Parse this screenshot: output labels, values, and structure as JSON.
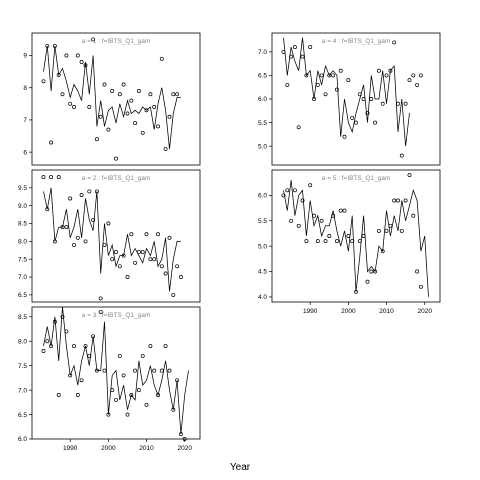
{
  "chart_data": {
    "type": "line",
    "xlabel": "Year",
    "panels": [
      {
        "title": "a = 1 : f=IBTS_Q1_gam",
        "xlim": [
          1980,
          2024
        ],
        "ylim": [
          5.6,
          9.7
        ],
        "yticks": [
          6,
          7,
          8,
          9
        ],
        "xticks": [],
        "line": {
          "x": [
            1983,
            1984,
            1985,
            1986,
            1987,
            1988,
            1989,
            1990,
            1991,
            1992,
            1993,
            1994,
            1995,
            1996,
            1997,
            1998,
            1999,
            2000,
            2001,
            2002,
            2003,
            2004,
            2005,
            2006,
            2007,
            2008,
            2009,
            2010,
            2011,
            2012,
            2013,
            2014,
            2015,
            2016,
            2017,
            2018,
            2019,
            2020,
            2021
          ],
          "y": [
            8.5,
            9.3,
            7.9,
            9.3,
            8.4,
            8.6,
            8.2,
            7.7,
            8.1,
            7.9,
            7.6,
            8.8,
            7.8,
            9.0,
            6.8,
            7.6,
            6.8,
            7.3,
            7.4,
            6.9,
            7.5,
            7.1,
            7.6,
            7.2,
            7.3,
            7.2,
            7.4,
            7.3,
            7.4,
            6.7,
            7.5,
            8.0,
            7.3,
            6.1,
            7.2,
            7.7,
            7.7,
            null,
            null
          ]
        },
        "points": {
          "x": [
            1983,
            1984,
            1985,
            1986,
            1987,
            1988,
            1989,
            1990,
            1991,
            1992,
            1993,
            1994,
            1995,
            1996,
            1997,
            1998,
            1999,
            2000,
            2001,
            2002,
            2003,
            2004,
            2005,
            2006,
            2007,
            2008,
            2009,
            2010,
            2011,
            2012,
            2013,
            2014,
            2015,
            2016,
            2017,
            2018
          ],
          "y": [
            8.2,
            9.3,
            6.3,
            9.3,
            8.4,
            7.8,
            9.0,
            7.5,
            7.4,
            9.0,
            8.8,
            8.7,
            7.4,
            9.5,
            6.4,
            7.1,
            8.1,
            6.7,
            7.9,
            5.8,
            7.8,
            8.1,
            7.2,
            7.6,
            6.9,
            7.9,
            6.6,
            7.3,
            7.8,
            7.4,
            6.8,
            8.9,
            6.1,
            7.1,
            7.8,
            7.8
          ]
        }
      },
      {
        "title": "a = 4 : f=IBTS_Q1_gam",
        "xlim": [
          1980,
          2024
        ],
        "ylim": [
          4.6,
          7.4
        ],
        "yticks": [
          5.0,
          5.5,
          6.0,
          6.5,
          7.0
        ],
        "xticks": [],
        "line": {
          "x": [
            1983,
            1984,
            1985,
            1986,
            1987,
            1988,
            1989,
            1990,
            1991,
            1992,
            1993,
            1994,
            1995,
            1996,
            1997,
            1998,
            1999,
            2000,
            2001,
            2002,
            2003,
            2004,
            2005,
            2006,
            2007,
            2008,
            2009,
            2010,
            2011,
            2012,
            2013,
            2014,
            2015,
            2016,
            2017,
            2018,
            2019,
            2020,
            2021
          ],
          "y": [
            7.3,
            6.5,
            7.1,
            6.8,
            6.6,
            7.3,
            6.5,
            6.6,
            6.0,
            6.6,
            6.3,
            6.7,
            6.5,
            6.6,
            6.5,
            5.2,
            6.0,
            5.5,
            5.3,
            5.7,
            6.0,
            6.3,
            5.5,
            6.5,
            6.0,
            6.0,
            6.6,
            5.9,
            6.6,
            6.7,
            5.3,
            6.0,
            5.0,
            5.7,
            null,
            null,
            null,
            null,
            null
          ]
        },
        "points": {
          "x": [
            1983,
            1984,
            1985,
            1986,
            1987,
            1988,
            1989,
            1990,
            1991,
            1992,
            1993,
            1994,
            1995,
            1996,
            1997,
            1998,
            1999,
            2000,
            2001,
            2002,
            2003,
            2004,
            2005,
            2006,
            2007,
            2008,
            2009,
            2010,
            2011,
            2012,
            2013,
            2014,
            2015,
            2016,
            2017,
            2018,
            2019
          ],
          "y": [
            7.0,
            6.3,
            6.9,
            7.1,
            5.4,
            6.9,
            6.5,
            7.1,
            6.0,
            6.3,
            6.5,
            6.1,
            6.5,
            6.5,
            6.2,
            6.6,
            5.2,
            6.4,
            5.6,
            5.5,
            6.1,
            6.0,
            5.7,
            6.0,
            5.5,
            6.6,
            5.9,
            6.5,
            6.6,
            7.2,
            5.9,
            4.8,
            5.9,
            6.4,
            6.5,
            6.3,
            6.5
          ]
        }
      },
      {
        "title": "a = 2 : f=IBTS_Q1_gam",
        "xlim": [
          1980,
          2024
        ],
        "ylim": [
          6.3,
          10.0
        ],
        "yticks": [
          6.5,
          7.0,
          7.5,
          8.0,
          8.5,
          9.0,
          9.5
        ],
        "xticks": [],
        "line": {
          "x": [
            1983,
            1984,
            1985,
            1986,
            1987,
            1988,
            1989,
            1990,
            1991,
            1992,
            1993,
            1994,
            1995,
            1996,
            1997,
            1998,
            1999,
            2000,
            2001,
            2002,
            2003,
            2004,
            2005,
            2006,
            2007,
            2008,
            2009,
            2010,
            2011,
            2012,
            2013,
            2014,
            2015,
            2016,
            2017,
            2018,
            2019,
            2020,
            2021
          ],
          "y": [
            9.4,
            8.9,
            9.5,
            8.0,
            8.4,
            8.4,
            8.9,
            8.1,
            8.4,
            8.9,
            8.1,
            9.2,
            8.6,
            8.3,
            9.4,
            7.1,
            8.5,
            7.6,
            7.9,
            7.3,
            7.6,
            7.6,
            8.2,
            7.6,
            7.8,
            7.6,
            7.4,
            7.8,
            7.6,
            8.0,
            7.3,
            7.5,
            8.1,
            6.6,
            7.5,
            8.0,
            8.0,
            null,
            null
          ]
        },
        "points": {
          "x": [
            1983,
            1984,
            1985,
            1986,
            1987,
            1988,
            1989,
            1990,
            1991,
            1992,
            1993,
            1994,
            1995,
            1996,
            1997,
            1998,
            1999,
            2000,
            2001,
            2002,
            2003,
            2004,
            2005,
            2006,
            2007,
            2008,
            2009,
            2010,
            2011,
            2012,
            2013,
            2014,
            2015,
            2016,
            2017,
            2018,
            2019
          ],
          "y": [
            9.8,
            8.9,
            9.8,
            8.0,
            9.8,
            8.4,
            8.4,
            9.2,
            7.9,
            8.1,
            9.3,
            8.0,
            9.4,
            8.6,
            9.4,
            6.4,
            7.9,
            8.5,
            7.5,
            7.7,
            7.3,
            7.6,
            7.0,
            8.2,
            7.4,
            7.7,
            7.7,
            8.2,
            7.5,
            7.5,
            8.2,
            7.3,
            7.1,
            8.1,
            6.5,
            7.3,
            7.0
          ]
        }
      },
      {
        "title": "a = 5 : f=IBTS_Q1_gam",
        "xlim": [
          1980,
          2024
        ],
        "ylim": [
          3.9,
          6.5
        ],
        "yticks": [
          4.0,
          4.5,
          5.0,
          5.5,
          6.0
        ],
        "xticks": [
          1990,
          2000,
          2010,
          2020
        ],
        "line": {
          "x": [
            1983,
            1984,
            1985,
            1986,
            1987,
            1988,
            1989,
            1990,
            1991,
            1992,
            1993,
            1994,
            1995,
            1996,
            1997,
            1998,
            1999,
            2000,
            2001,
            2002,
            2003,
            2004,
            2005,
            2006,
            2007,
            2008,
            2009,
            2010,
            2011,
            2012,
            2013,
            2014,
            2015,
            2016,
            2017,
            2018,
            2019,
            2020,
            2021
          ],
          "y": [
            6.1,
            5.7,
            6.3,
            5.6,
            6.0,
            6.1,
            5.2,
            5.9,
            5.4,
            5.6,
            5.2,
            5.4,
            5.4,
            5.7,
            5.3,
            5.0,
            5.3,
            4.9,
            5.6,
            4.1,
            4.8,
            5.6,
            4.5,
            4.6,
            4.5,
            5.0,
            4.9,
            5.7,
            5.2,
            5.6,
            5.3,
            5.9,
            5.5,
            5.8,
            6.1,
            5.9,
            4.9,
            5.2,
            4.0
          ]
        },
        "points": {
          "x": [
            1983,
            1984,
            1985,
            1986,
            1987,
            1988,
            1989,
            1990,
            1991,
            1992,
            1993,
            1994,
            1995,
            1996,
            1997,
            1998,
            1999,
            2000,
            2001,
            2002,
            2003,
            2004,
            2005,
            2006,
            2007,
            2008,
            2009,
            2010,
            2011,
            2012,
            2013,
            2014,
            2015,
            2016,
            2017,
            2018,
            2019
          ],
          "y": [
            6.0,
            6.1,
            5.5,
            6.1,
            5.4,
            5.9,
            5.1,
            6.2,
            5.6,
            5.1,
            5.5,
            5.1,
            5.2,
            5.6,
            5.1,
            5.7,
            5.7,
            5.2,
            5.1,
            4.1,
            5.1,
            5.2,
            4.3,
            4.5,
            4.5,
            5.3,
            4.9,
            5.3,
            5.4,
            5.9,
            5.9,
            5.3,
            5.9,
            6.4,
            5.6,
            4.5,
            4.2
          ]
        }
      },
      {
        "title": "a = 3 : f=IBTS_Q1_gam",
        "xlim": [
          1980,
          2024
        ],
        "ylim": [
          6.0,
          8.7
        ],
        "yticks": [
          6.0,
          6.5,
          7.0,
          7.5,
          8.0,
          8.5
        ],
        "xticks": [
          1990,
          2000,
          2010,
          2020
        ],
        "line": {
          "x": [
            1983,
            1984,
            1985,
            1986,
            1987,
            1988,
            1989,
            1990,
            1991,
            1992,
            1993,
            1994,
            1995,
            1996,
            1997,
            1998,
            1999,
            2000,
            2001,
            2002,
            2003,
            2004,
            2005,
            2006,
            2007,
            2008,
            2009,
            2010,
            2011,
            2012,
            2013,
            2014,
            2015,
            2016,
            2017,
            2018,
            2019,
            2020,
            2021
          ],
          "y": [
            7.9,
            8.3,
            7.9,
            8.5,
            7.6,
            8.7,
            7.9,
            7.3,
            7.5,
            7.1,
            7.6,
            7.9,
            7.5,
            8.1,
            7.4,
            7.4,
            8.4,
            6.5,
            7.3,
            7.4,
            6.8,
            7.1,
            6.6,
            6.9,
            6.8,
            7.6,
            7.1,
            7.2,
            7.5,
            7.1,
            6.9,
            7.2,
            7.6,
            7.0,
            6.6,
            7.2,
            6.1,
            6.9,
            7.4
          ]
        },
        "points": {
          "x": [
            1983,
            1984,
            1985,
            1986,
            1987,
            1988,
            1989,
            1990,
            1991,
            1992,
            1993,
            1994,
            1995,
            1996,
            1997,
            1998,
            1999,
            2000,
            2001,
            2002,
            2003,
            2004,
            2005,
            2006,
            2007,
            2008,
            2009,
            2010,
            2011,
            2012,
            2013,
            2014,
            2015,
            2016,
            2017,
            2018,
            2019,
            2020
          ],
          "y": [
            7.8,
            8.0,
            7.9,
            8.4,
            6.9,
            8.5,
            8.2,
            7.3,
            7.9,
            6.9,
            7.2,
            7.9,
            7.7,
            8.1,
            7.4,
            8.6,
            7.4,
            6.5,
            7.0,
            6.8,
            7.7,
            7.3,
            6.5,
            6.9,
            7.4,
            7.0,
            7.7,
            6.7,
            7.9,
            7.4,
            6.9,
            7.4,
            7.9,
            7.4,
            6.6,
            7.2,
            6.1,
            6.0
          ]
        }
      }
    ]
  }
}
